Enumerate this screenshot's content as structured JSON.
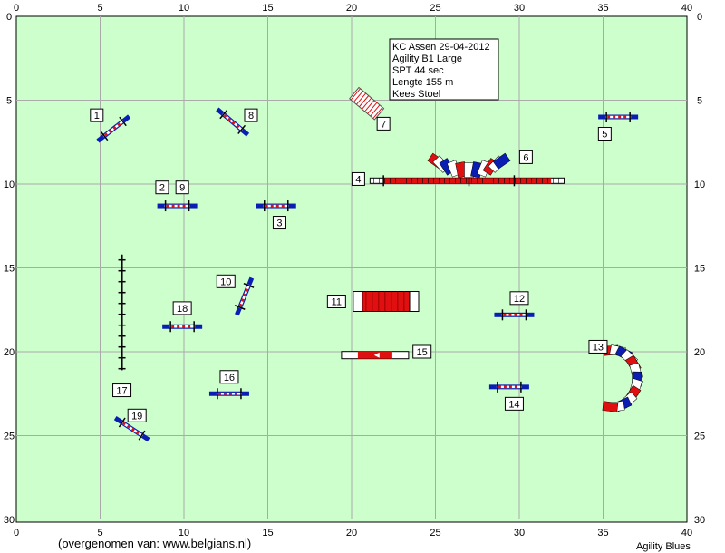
{
  "info_box": {
    "lines": [
      "KC Assen 29-04-2012",
      "Agility B1 Large",
      "SPT 44 sec",
      "Lengte 155 m",
      "Kees Stoel"
    ]
  },
  "grid": {
    "x_range": [
      0,
      40
    ],
    "y_range": [
      0,
      30
    ],
    "x_ticks": [
      "0",
      "5",
      "10",
      "15",
      "20",
      "25",
      "30",
      "35",
      "40"
    ],
    "y_ticks": [
      "0",
      "5",
      "10",
      "15",
      "20",
      "25",
      "30"
    ],
    "background": "#ccffcc",
    "grid_color": "#aaaaaa"
  },
  "colors": {
    "blue": "#0a1eb4",
    "red": "#e01010",
    "white": "#ffffff",
    "dark": "#000000"
  },
  "obstacles": [
    {
      "number": "1",
      "type": "jump",
      "x": 5.8,
      "y": 6.7,
      "angle": -38,
      "label_pos": [
        4.8,
        5.9
      ]
    },
    {
      "number": "2",
      "type": "jump",
      "x": 9.6,
      "y": 11.3,
      "angle": 0,
      "label_pos": [
        8.7,
        10.2
      ]
    },
    {
      "number": "9",
      "type": "label",
      "x": 9.6,
      "y": 11.3,
      "label_pos": [
        9.9,
        10.2
      ]
    },
    {
      "number": "3",
      "type": "jump",
      "x": 15.5,
      "y": 11.3,
      "angle": 0,
      "label_pos": [
        15.7,
        12.3
      ]
    },
    {
      "number": "4",
      "type": "dogwalk",
      "x": 26.9,
      "y": 9.8,
      "angle": 0,
      "label_pos": [
        20.4,
        9.7
      ]
    },
    {
      "number": "5",
      "type": "jump",
      "x": 35.9,
      "y": 6.0,
      "angle": 0,
      "label_pos": [
        35.1,
        7.0
      ]
    },
    {
      "number": "6",
      "type": "tunnel-curve-up",
      "x": 27.0,
      "y": 9.0,
      "label_pos": [
        30.4,
        8.4
      ]
    },
    {
      "number": "7",
      "type": "tire",
      "x": 20.9,
      "y": 5.2,
      "angle": 40,
      "label_pos": [
        21.9,
        6.4
      ]
    },
    {
      "number": "8",
      "type": "jump",
      "x": 12.9,
      "y": 6.3,
      "angle": 40,
      "label_pos": [
        14.0,
        5.9
      ]
    },
    {
      "number": "10",
      "type": "jump",
      "x": 13.6,
      "y": 16.7,
      "angle": -68,
      "label_pos": [
        12.5,
        15.8
      ]
    },
    {
      "number": "11",
      "type": "tunnel-straight",
      "x": 22.0,
      "y": 17.0,
      "label_pos": [
        19.1,
        17.0
      ]
    },
    {
      "number": "12",
      "type": "jump",
      "x": 29.7,
      "y": 17.8,
      "angle": 0,
      "label_pos": [
        30.0,
        16.8
      ]
    },
    {
      "number": "13",
      "type": "tunnel-curve-right",
      "x": 36.4,
      "y": 21.6,
      "label_pos": [
        34.7,
        19.7
      ]
    },
    {
      "number": "14",
      "type": "jump",
      "x": 29.4,
      "y": 22.1,
      "angle": 0,
      "label_pos": [
        29.7,
        23.1
      ]
    },
    {
      "number": "15",
      "type": "table",
      "x": 21.6,
      "y": 20.2,
      "label_pos": [
        24.2,
        20.0
      ]
    },
    {
      "number": "16",
      "type": "jump",
      "x": 12.7,
      "y": 22.5,
      "angle": 0,
      "label_pos": [
        12.7,
        21.5
      ]
    },
    {
      "number": "17",
      "type": "weave",
      "x": 6.3,
      "y": 16.7,
      "angle": 90,
      "label_pos": [
        6.3,
        22.3
      ]
    },
    {
      "number": "18",
      "type": "jump",
      "x": 9.9,
      "y": 18.5,
      "angle": 0,
      "label_pos": [
        9.9,
        17.4
      ]
    },
    {
      "number": "19",
      "type": "jump",
      "x": 6.9,
      "y": 24.6,
      "angle": 33,
      "label_pos": [
        7.2,
        23.8
      ]
    }
  ],
  "credits": {
    "left": "(overgenomen van: www.belgians.nl)",
    "right": "Agility Blues"
  }
}
